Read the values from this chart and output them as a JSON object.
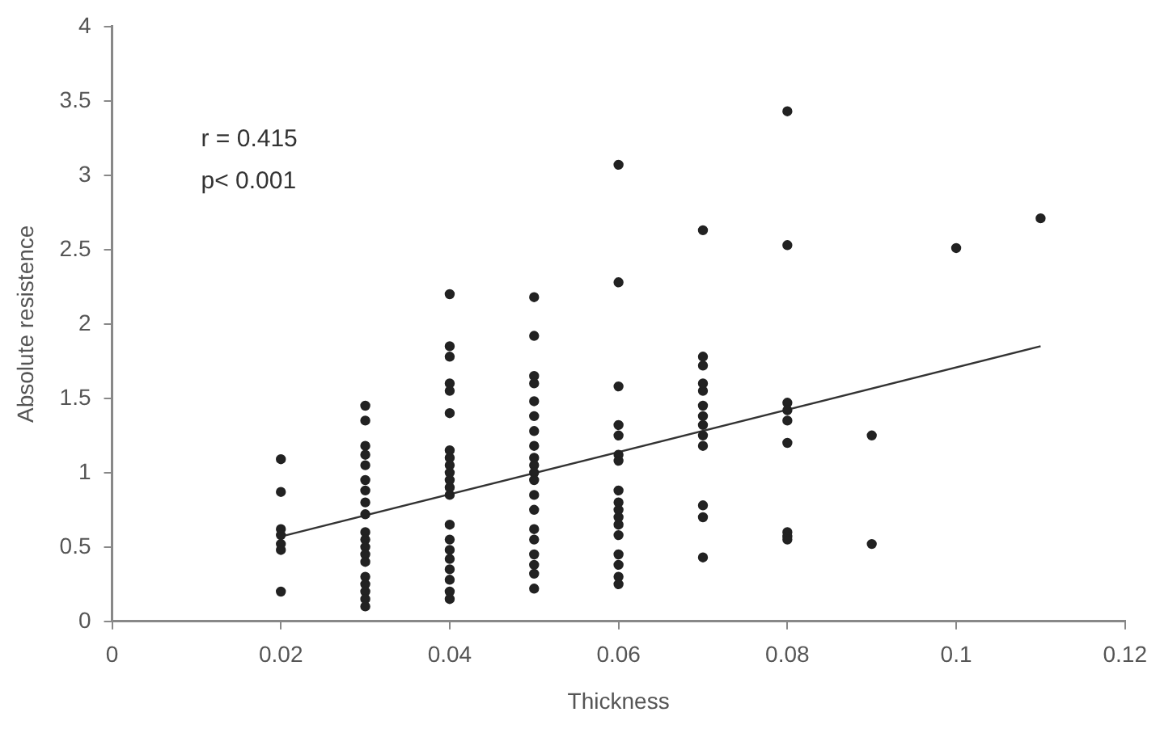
{
  "chart_data": {
    "type": "scatter",
    "xlabel": "Thickness",
    "ylabel": "Absolute resistence",
    "annotations": [
      "r = 0.415",
      "p< 0.001"
    ],
    "xlim": [
      0,
      0.12
    ],
    "xticks": [
      0,
      0.02,
      0.04,
      0.06,
      0.08,
      0.1,
      0.12
    ],
    "ylim": [
      0,
      4
    ],
    "yticks": [
      0,
      0.5,
      1,
      1.5,
      2,
      2.5,
      3,
      3.5,
      4
    ],
    "grid": false,
    "legend": false,
    "marker": "circle",
    "series": [
      {
        "color": "#222222",
        "x": [
          0.02,
          0.02,
          0.02,
          0.02,
          0.02,
          0.02,
          0.02,
          0.03,
          0.03,
          0.03,
          0.03,
          0.03,
          0.03,
          0.03,
          0.03,
          0.03,
          0.03,
          0.03,
          0.03,
          0.03,
          0.03,
          0.03,
          0.03,
          0.03,
          0.03,
          0.03,
          0.04,
          0.04,
          0.04,
          0.04,
          0.04,
          0.04,
          0.04,
          0.04,
          0.04,
          0.04,
          0.04,
          0.04,
          0.04,
          0.04,
          0.04,
          0.04,
          0.04,
          0.04,
          0.04,
          0.04,
          0.04,
          0.05,
          0.05,
          0.05,
          0.05,
          0.05,
          0.05,
          0.05,
          0.05,
          0.05,
          0.05,
          0.05,
          0.05,
          0.05,
          0.05,
          0.05,
          0.05,
          0.05,
          0.05,
          0.05,
          0.05,
          0.06,
          0.06,
          0.06,
          0.06,
          0.06,
          0.06,
          0.06,
          0.06,
          0.06,
          0.06,
          0.06,
          0.06,
          0.06,
          0.06,
          0.06,
          0.06,
          0.06,
          0.07,
          0.07,
          0.07,
          0.07,
          0.07,
          0.07,
          0.07,
          0.07,
          0.07,
          0.07,
          0.07,
          0.07,
          0.07,
          0.08,
          0.08,
          0.08,
          0.08,
          0.08,
          0.08,
          0.08,
          0.08,
          0.08,
          0.09,
          0.09,
          0.1,
          0.11
        ],
        "values": [
          1.09,
          0.87,
          0.62,
          0.58,
          0.52,
          0.48,
          0.2,
          1.45,
          1.35,
          1.18,
          1.12,
          1.05,
          0.95,
          0.88,
          0.8,
          0.72,
          0.6,
          0.55,
          0.5,
          0.45,
          0.4,
          0.3,
          0.25,
          0.2,
          0.15,
          0.1,
          2.2,
          1.85,
          1.78,
          1.6,
          1.55,
          1.4,
          1.15,
          1.1,
          1.05,
          1.0,
          0.95,
          0.9,
          0.85,
          0.65,
          0.55,
          0.48,
          0.42,
          0.35,
          0.28,
          0.2,
          0.15,
          2.18,
          1.92,
          1.65,
          1.6,
          1.48,
          1.38,
          1.28,
          1.18,
          1.1,
          1.05,
          1.0,
          0.95,
          0.85,
          0.75,
          0.62,
          0.55,
          0.45,
          0.38,
          0.32,
          0.22,
          3.07,
          2.28,
          1.58,
          1.32,
          1.25,
          1.12,
          1.08,
          0.88,
          0.8,
          0.75,
          0.7,
          0.65,
          0.58,
          0.45,
          0.38,
          0.3,
          0.25,
          2.63,
          1.78,
          1.72,
          1.6,
          1.55,
          1.45,
          1.38,
          1.32,
          1.25,
          1.18,
          0.78,
          0.7,
          0.43,
          3.43,
          2.53,
          1.47,
          1.42,
          1.35,
          1.2,
          0.6,
          0.57,
          0.55,
          1.25,
          0.52,
          2.51,
          2.71
        ]
      },
      {
        "type": "line",
        "color": "#333333",
        "marker": "none",
        "x": [
          0.02,
          0.11
        ],
        "values": [
          0.57,
          1.85
        ]
      }
    ]
  }
}
